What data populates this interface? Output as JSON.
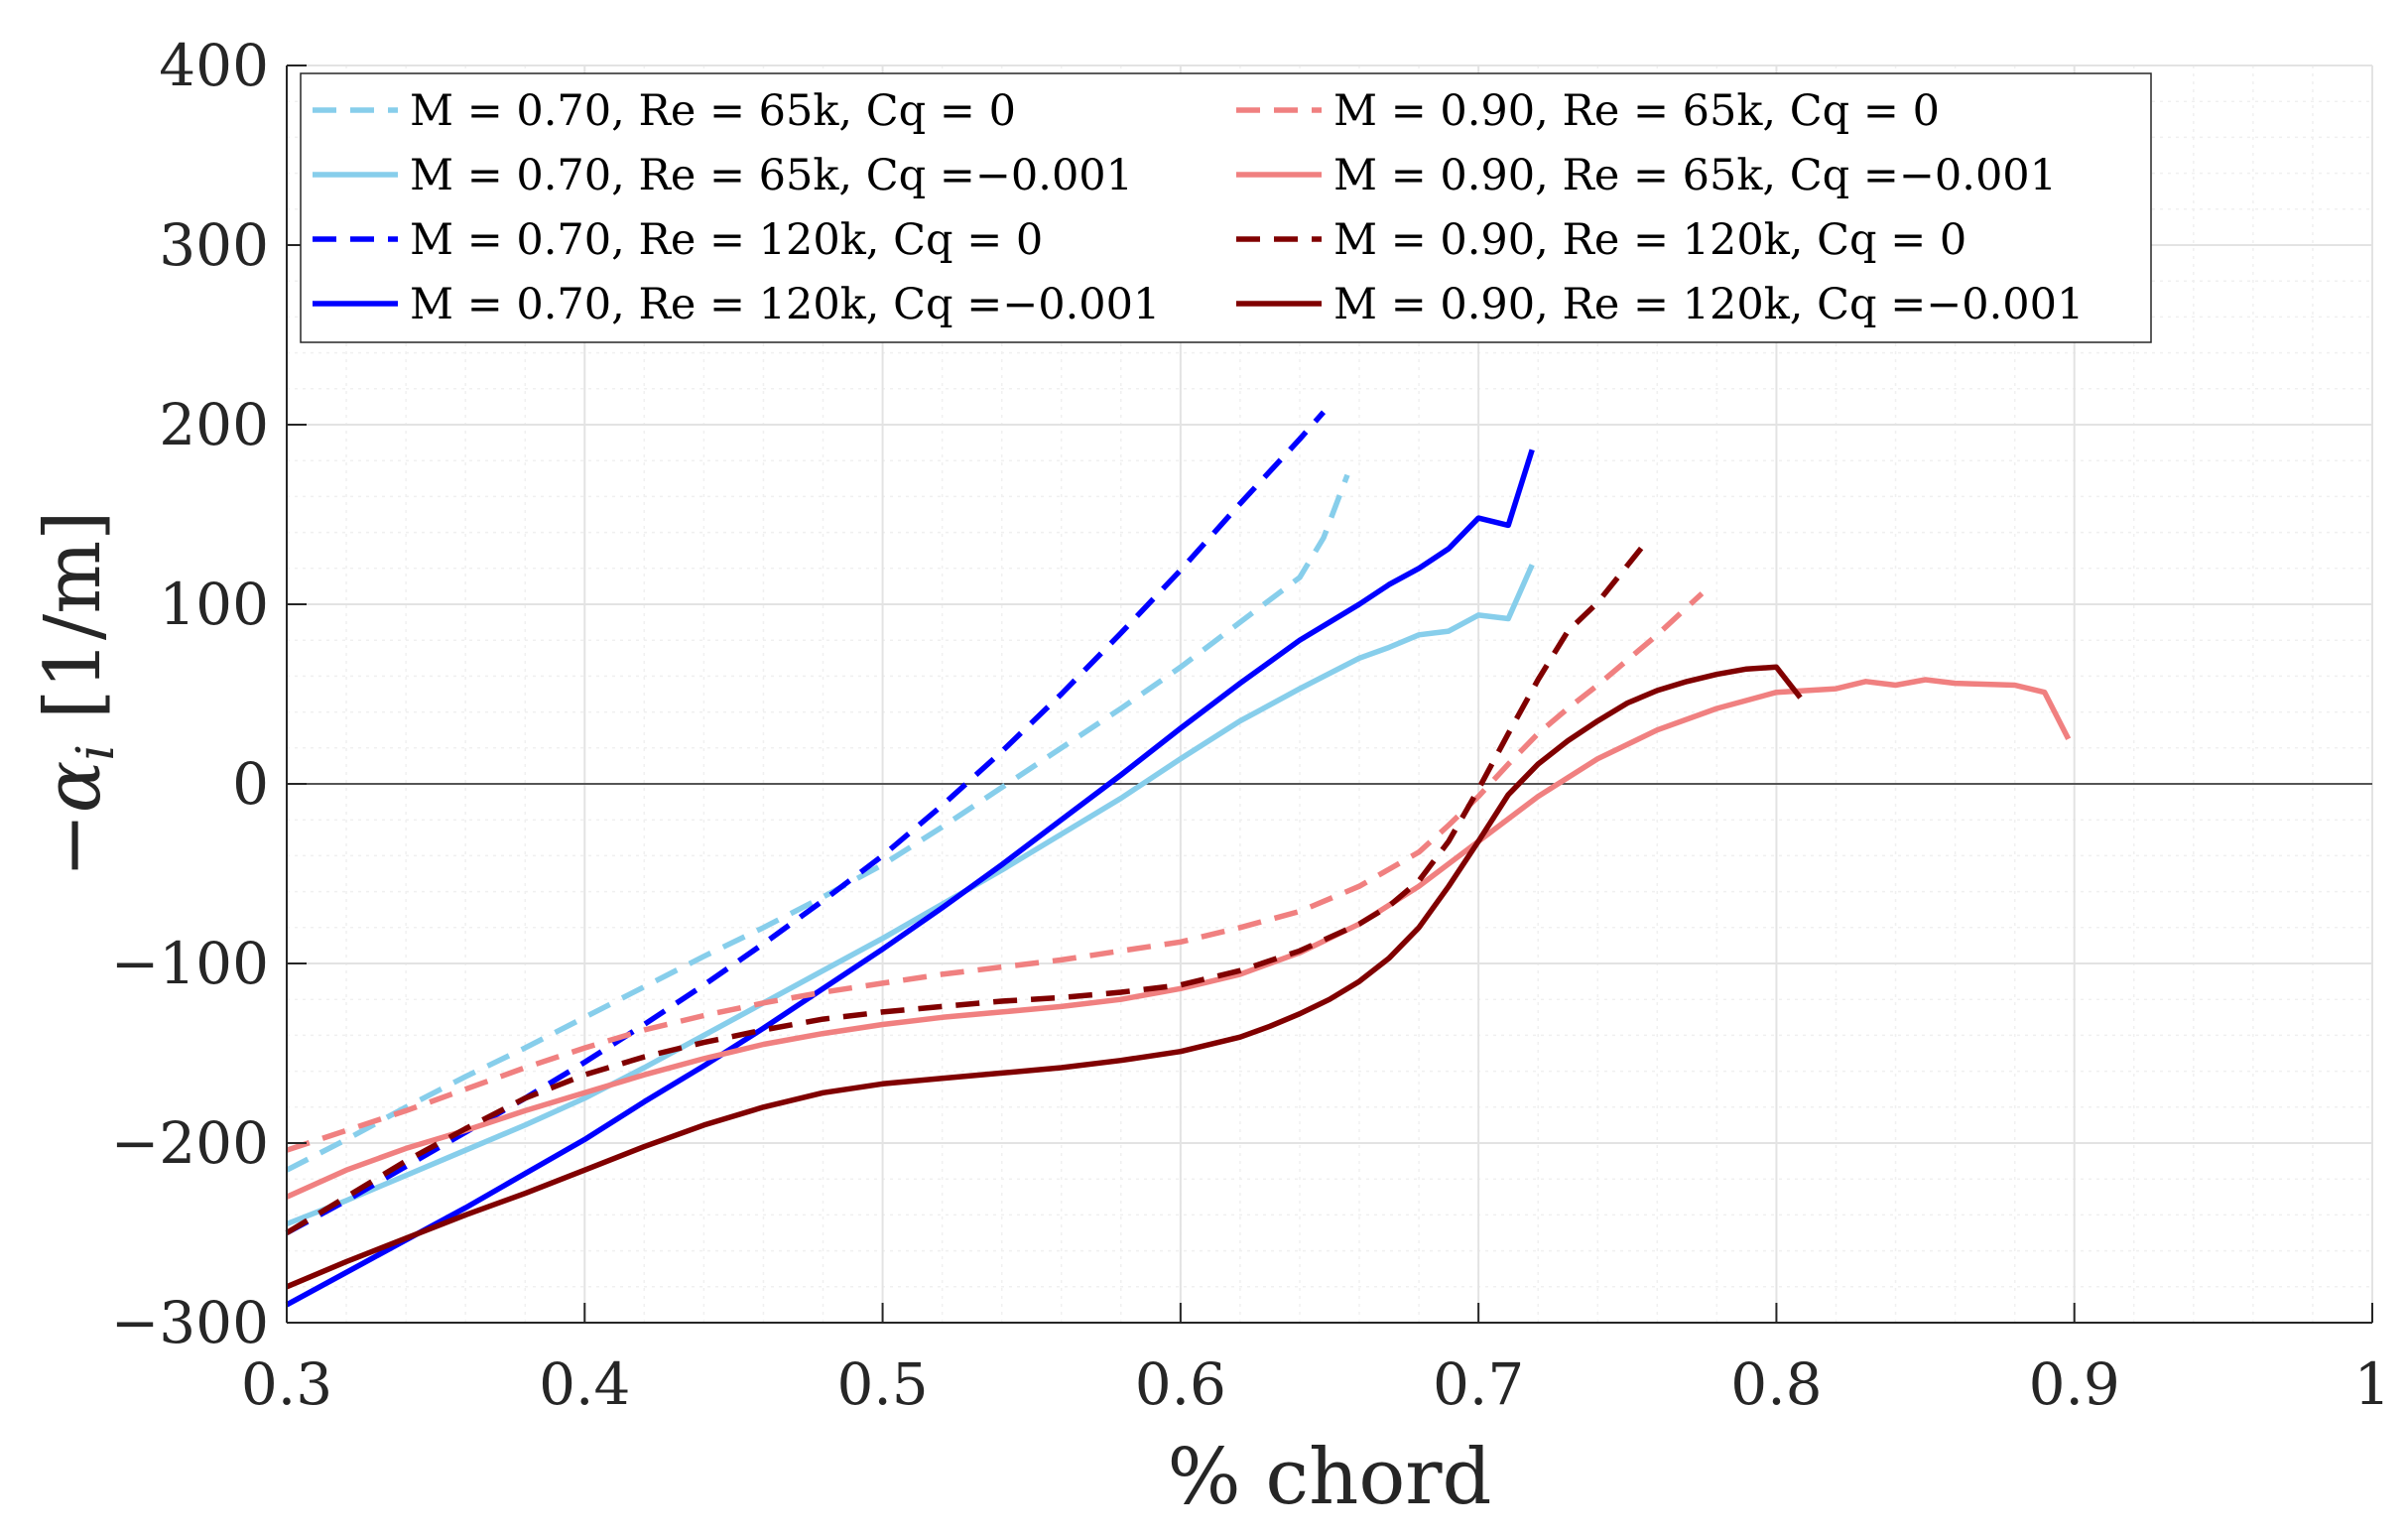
{
  "chart_data": {
    "type": "line",
    "title": "",
    "xlabel": "% chord",
    "ylabel": "−α_i [1/m]",
    "xlim": [
      0.3,
      1.0
    ],
    "ylim": [
      -300,
      400
    ],
    "xticks": [
      0.3,
      0.4,
      0.5,
      0.6,
      0.7,
      0.8,
      0.9,
      1.0
    ],
    "xtick_labels": [
      "0.3",
      "0.4",
      "0.5",
      "0.6",
      "0.7",
      "0.8",
      "0.9",
      "1"
    ],
    "yticks": [
      -300,
      -200,
      -100,
      0,
      100,
      200,
      300,
      400
    ],
    "ytick_labels": [
      "−300",
      "−200",
      "−100",
      "0",
      "100",
      "200",
      "300",
      "400"
    ],
    "grid": true,
    "minor_grid": true,
    "zero_line": true,
    "legend_position": "top-left",
    "legend_columns": 2,
    "series": [
      {
        "name": "M = 0.70, Re = 65k, Cq = 0",
        "color": "#87CEEB",
        "dash": "dashed",
        "x": [
          0.3,
          0.32,
          0.34,
          0.36,
          0.38,
          0.4,
          0.42,
          0.44,
          0.46,
          0.48,
          0.5,
          0.52,
          0.54,
          0.56,
          0.58,
          0.6,
          0.62,
          0.64,
          0.648,
          0.656
        ],
        "y": [
          -215,
          -198,
          -180,
          -163,
          -147,
          -130,
          -113,
          -96,
          -80,
          -63,
          -45,
          -24,
          -2,
          20,
          42,
          65,
          90,
          115,
          137,
          172
        ]
      },
      {
        "name": "M = 0.70, Re = 65k, Cq =−0.001",
        "color": "#87CEEB",
        "dash": "solid",
        "x": [
          0.3,
          0.32,
          0.34,
          0.36,
          0.38,
          0.4,
          0.42,
          0.44,
          0.46,
          0.48,
          0.5,
          0.52,
          0.54,
          0.56,
          0.58,
          0.6,
          0.62,
          0.64,
          0.66,
          0.67,
          0.68,
          0.69,
          0.7,
          0.71,
          0.718
        ],
        "y": [
          -245,
          -232,
          -218,
          -204,
          -190,
          -175,
          -158,
          -140,
          -122,
          -104,
          -86,
          -67,
          -48,
          -28,
          -8,
          14,
          35,
          53,
          70,
          76,
          83,
          85,
          94,
          92,
          122
        ]
      },
      {
        "name": "M = 0.70, Re = 120k, Cq = 0",
        "color": "#0000FF",
        "dash": "dashed",
        "x": [
          0.3,
          0.32,
          0.34,
          0.36,
          0.38,
          0.4,
          0.42,
          0.44,
          0.46,
          0.48,
          0.5,
          0.52,
          0.54,
          0.56,
          0.58,
          0.6,
          0.62,
          0.64,
          0.648
        ],
        "y": [
          -250,
          -232,
          -213,
          -194,
          -175,
          -155,
          -134,
          -112,
          -89,
          -65,
          -40,
          -12,
          18,
          50,
          84,
          119,
          156,
          192,
          207
        ]
      },
      {
        "name": "M = 0.70, Re = 120k, Cq =−0.001",
        "color": "#0000FF",
        "dash": "solid",
        "x": [
          0.3,
          0.32,
          0.34,
          0.36,
          0.38,
          0.4,
          0.42,
          0.44,
          0.46,
          0.48,
          0.5,
          0.52,
          0.54,
          0.56,
          0.58,
          0.6,
          0.62,
          0.64,
          0.66,
          0.67,
          0.68,
          0.69,
          0.7,
          0.71,
          0.718
        ],
        "y": [
          -290,
          -272,
          -254,
          -236,
          -217,
          -198,
          -177,
          -157,
          -136,
          -114,
          -92,
          -69,
          -45,
          -20,
          5,
          31,
          56,
          80,
          100,
          111,
          120,
          131,
          148,
          144,
          186
        ]
      },
      {
        "name": "M = 0.90, Re = 65k, Cq = 0",
        "color": "#F08080",
        "dash": "dashed",
        "x": [
          0.3,
          0.32,
          0.34,
          0.36,
          0.38,
          0.4,
          0.42,
          0.44,
          0.46,
          0.48,
          0.5,
          0.52,
          0.54,
          0.56,
          0.58,
          0.6,
          0.62,
          0.64,
          0.66,
          0.68,
          0.69,
          0.7,
          0.71,
          0.72,
          0.73,
          0.74,
          0.75,
          0.76,
          0.775
        ],
        "y": [
          -204,
          -193,
          -182,
          -170,
          -158,
          -147,
          -137,
          -129,
          -122,
          -116,
          -111,
          -106,
          -102,
          -98,
          -93,
          -88,
          -80,
          -71,
          -57,
          -38,
          -23,
          -7,
          11,
          28,
          42,
          55,
          69,
          83,
          106
        ]
      },
      {
        "name": "M = 0.90, Re = 65k, Cq =−0.001",
        "color": "#F08080",
        "dash": "solid",
        "x": [
          0.3,
          0.32,
          0.34,
          0.36,
          0.38,
          0.4,
          0.42,
          0.44,
          0.46,
          0.48,
          0.5,
          0.52,
          0.54,
          0.56,
          0.58,
          0.6,
          0.62,
          0.64,
          0.66,
          0.68,
          0.7,
          0.72,
          0.74,
          0.76,
          0.78,
          0.8,
          0.82,
          0.83,
          0.84,
          0.85,
          0.86,
          0.88,
          0.89,
          0.898
        ],
        "y": [
          -230,
          -215,
          -203,
          -193,
          -182,
          -172,
          -162,
          -153,
          -145,
          -139,
          -134,
          -130,
          -127,
          -124,
          -120,
          -114,
          -106,
          -94,
          -78,
          -57,
          -32,
          -7,
          14,
          30,
          42,
          51,
          53,
          57,
          55,
          58,
          56,
          55,
          51,
          25
        ]
      },
      {
        "name": "M = 0.90, Re = 120k, Cq = 0",
        "color": "#800000",
        "dash": "dashed",
        "x": [
          0.3,
          0.32,
          0.34,
          0.36,
          0.38,
          0.4,
          0.42,
          0.44,
          0.46,
          0.48,
          0.5,
          0.52,
          0.54,
          0.56,
          0.58,
          0.6,
          0.62,
          0.64,
          0.66,
          0.67,
          0.68,
          0.69,
          0.7,
          0.71,
          0.72,
          0.73,
          0.74,
          0.755
        ],
        "y": [
          -250,
          -230,
          -210,
          -192,
          -175,
          -162,
          -152,
          -144,
          -137,
          -131,
          -127,
          -124,
          -121,
          -119,
          -116,
          -112,
          -104,
          -93,
          -78,
          -68,
          -54,
          -32,
          -3,
          28,
          58,
          85,
          101,
          132
        ]
      },
      {
        "name": "M = 0.90, Re = 120k, Cq =−0.001",
        "color": "#800000",
        "dash": "solid",
        "x": [
          0.3,
          0.32,
          0.34,
          0.36,
          0.38,
          0.4,
          0.42,
          0.44,
          0.46,
          0.48,
          0.5,
          0.52,
          0.54,
          0.56,
          0.58,
          0.6,
          0.62,
          0.63,
          0.64,
          0.65,
          0.66,
          0.67,
          0.68,
          0.69,
          0.7,
          0.71,
          0.72,
          0.73,
          0.74,
          0.75,
          0.76,
          0.77,
          0.78,
          0.79,
          0.8,
          0.808
        ],
        "y": [
          -280,
          -266,
          -253,
          -240,
          -228,
          -215,
          -202,
          -190,
          -180,
          -172,
          -167,
          -164,
          -161,
          -158,
          -154,
          -149,
          -141,
          -135,
          -128,
          -120,
          -110,
          -97,
          -80,
          -57,
          -32,
          -6,
          11,
          24,
          35,
          45,
          52,
          57,
          61,
          64,
          65,
          48
        ]
      }
    ]
  }
}
